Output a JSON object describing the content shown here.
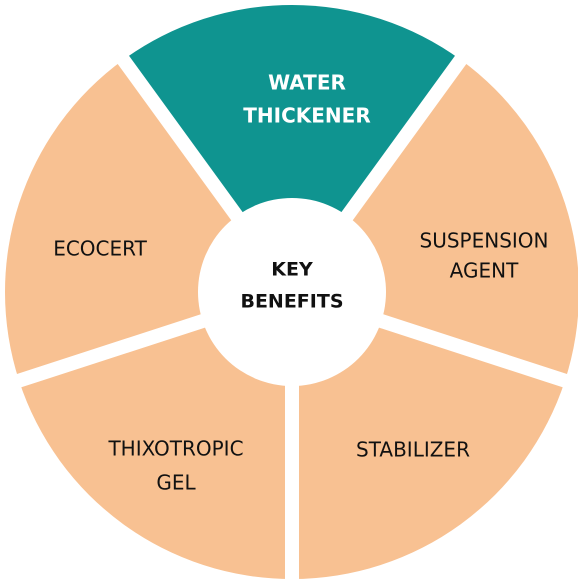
{
  "center": {
    "label": [
      "KEY",
      "BENEFITS"
    ]
  },
  "nodes": [
    {
      "label": [
        "WATER",
        "THICKENER"
      ]
    },
    {
      "label": [
        "SUSPENSION",
        "AGENT"
      ]
    },
    {
      "label": [
        "STABILIZER"
      ]
    },
    {
      "label": [
        "THIXOTROPIC",
        "GEL"
      ]
    },
    {
      "label": [
        "ECOCERT"
      ]
    }
  ]
}
